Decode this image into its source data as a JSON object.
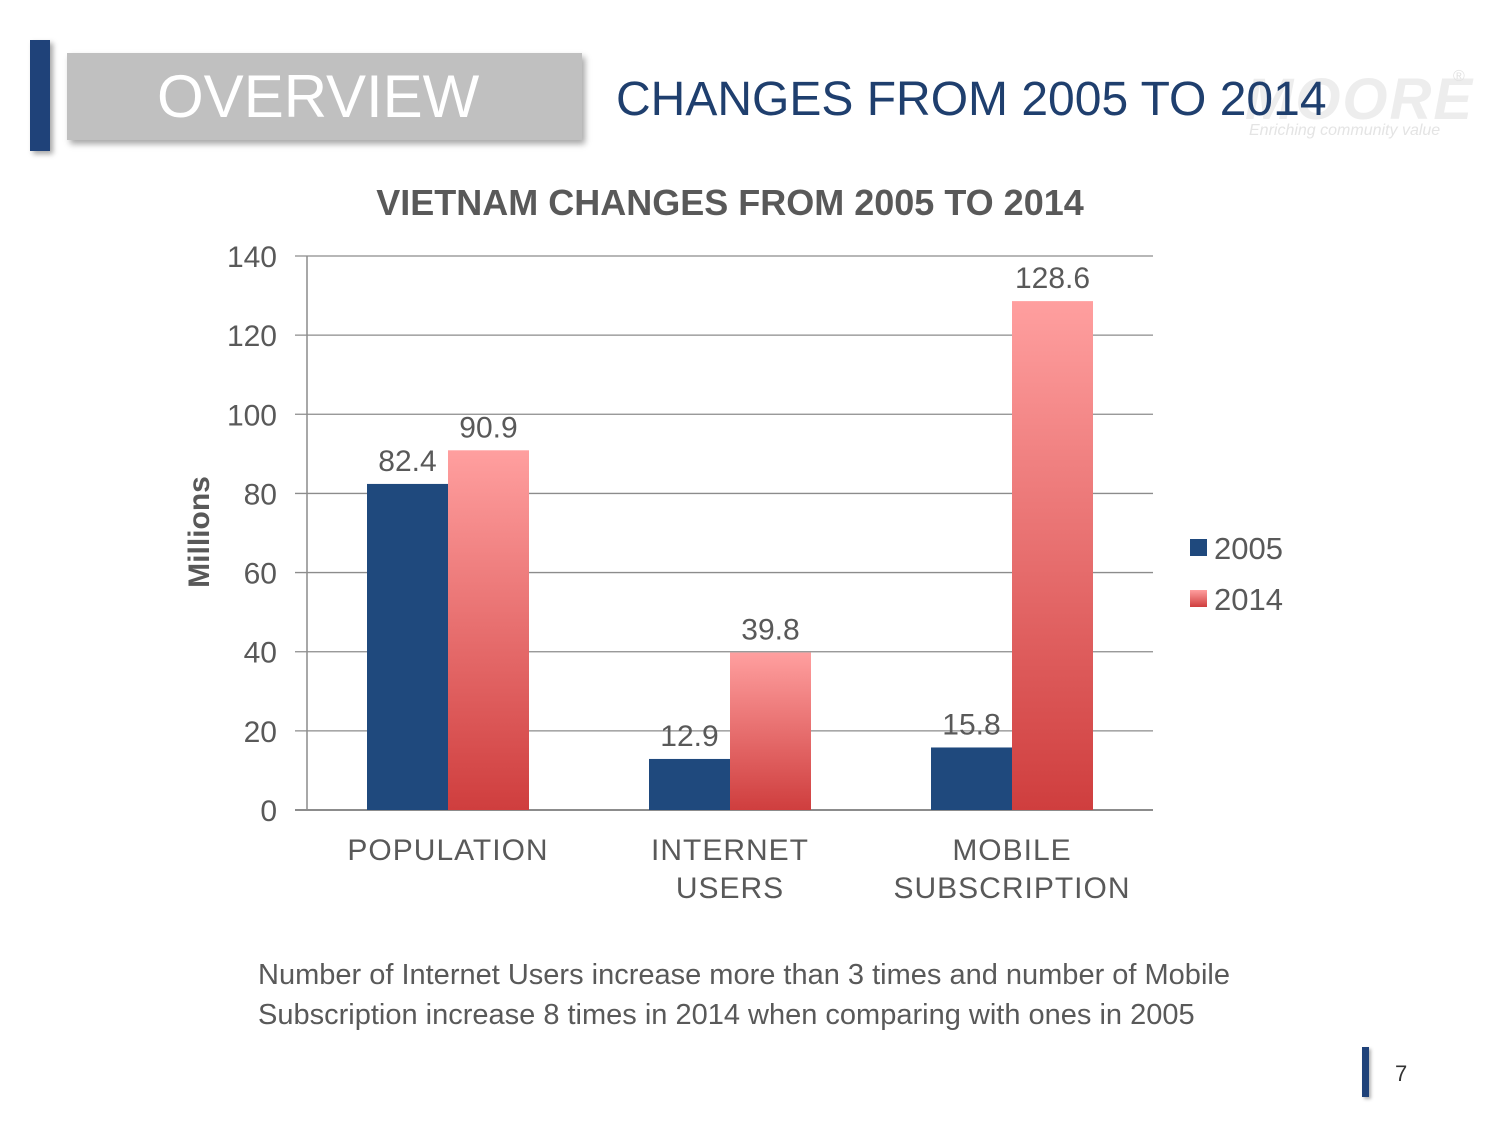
{
  "header": {
    "section_label": "OVERVIEW",
    "title": "CHANGES FROM 2005 TO 2014",
    "accent_color": "#1f4279"
  },
  "logo": {
    "wordmark": "MOORE",
    "registered": "®",
    "tagline": "Enriching community value"
  },
  "chart_data": {
    "type": "bar",
    "title": "VIETNAM CHANGES FROM 2005 TO 2014",
    "ylabel": "Millions",
    "xlabel": "",
    "ylim": [
      0,
      140
    ],
    "yticks": [
      0,
      20,
      40,
      60,
      80,
      100,
      120,
      140
    ],
    "categories": [
      [
        "POPULATION"
      ],
      [
        "INTERNET",
        "USERS"
      ],
      [
        "MOBILE",
        "SUBSCRIPTION"
      ]
    ],
    "series": [
      {
        "name": "2005",
        "values": [
          82.4,
          12.9,
          15.8
        ],
        "color": "#1f497d"
      },
      {
        "name": "2014",
        "values": [
          90.9,
          39.8,
          128.6
        ],
        "color_top": "#ff9f9f",
        "color_bottom": "#cf3e3e"
      }
    ],
    "legend_position": "right",
    "grid": true
  },
  "caption": "Number of Internet Users increase more than 3 times and number of Mobile Subscription increase 8 times in 2014 when comparing with ones in 2005",
  "page_number": "7"
}
